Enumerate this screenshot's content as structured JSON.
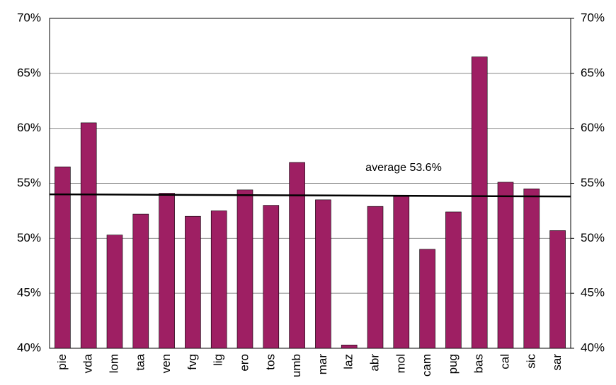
{
  "chart_data": {
    "type": "bar",
    "categories": [
      "pie",
      "vda",
      "lom",
      "taa",
      "ven",
      "fvg",
      "lig",
      "ero",
      "tos",
      "umb",
      "mar",
      "laz",
      "abr",
      "mol",
      "cam",
      "pug",
      "bas",
      "cal",
      "sic",
      "sar"
    ],
    "values": [
      56.5,
      60.5,
      50.3,
      52.2,
      54.1,
      52.0,
      52.5,
      54.4,
      53.0,
      56.9,
      53.5,
      40.3,
      52.9,
      53.8,
      49.0,
      52.4,
      66.5,
      55.1,
      54.5,
      50.7
    ],
    "color": "#9e1f63",
    "ylim": [
      40,
      70
    ],
    "yticks": [
      {
        "value": 40,
        "label": "40%"
      },
      {
        "value": 45,
        "label": "45%"
      },
      {
        "value": 50,
        "label": "50%"
      },
      {
        "value": 55,
        "label": "55%"
      },
      {
        "value": 60,
        "label": "60%"
      },
      {
        "value": 65,
        "label": "65%"
      },
      {
        "value": 70,
        "label": "70%"
      }
    ],
    "y2lim": [
      40,
      70
    ],
    "y2ticks": [
      {
        "value": 40,
        "label": "40%"
      },
      {
        "value": 45,
        "label": "45%"
      },
      {
        "value": 50,
        "label": "50%"
      },
      {
        "value": 55,
        "label": "55%"
      },
      {
        "value": 60,
        "label": "60%"
      },
      {
        "value": 65,
        "label": "65%"
      },
      {
        "value": 70,
        "label": "70%"
      }
    ],
    "grid": true,
    "trend_line": {
      "values": [
        54.0,
        53.8
      ],
      "color": "#000000"
    },
    "annotation": "average 53.6%"
  }
}
